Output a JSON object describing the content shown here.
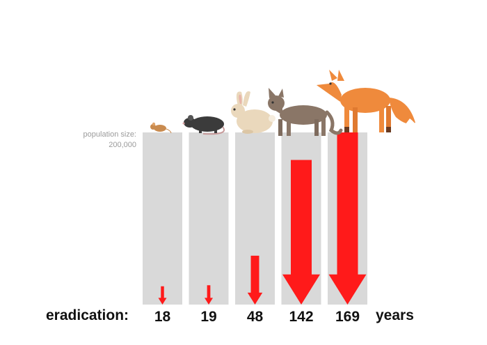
{
  "labels": {
    "population_size": "population size:",
    "population_value": "200,000",
    "row_label": "eradication:",
    "unit": "years"
  },
  "colors": {
    "column": "#d9d9d9",
    "arrow": "#ff1a1a"
  },
  "chart_data": {
    "type": "bar",
    "categories": [
      "mouse-icon",
      "rat-icon",
      "rabbit-icon",
      "cat-icon",
      "fox-icon"
    ],
    "values": [
      18,
      19,
      48,
      142,
      169
    ],
    "xlabel": "eradication:",
    "ylabel": "",
    "unit": "years",
    "ylim": [
      0,
      169
    ]
  }
}
